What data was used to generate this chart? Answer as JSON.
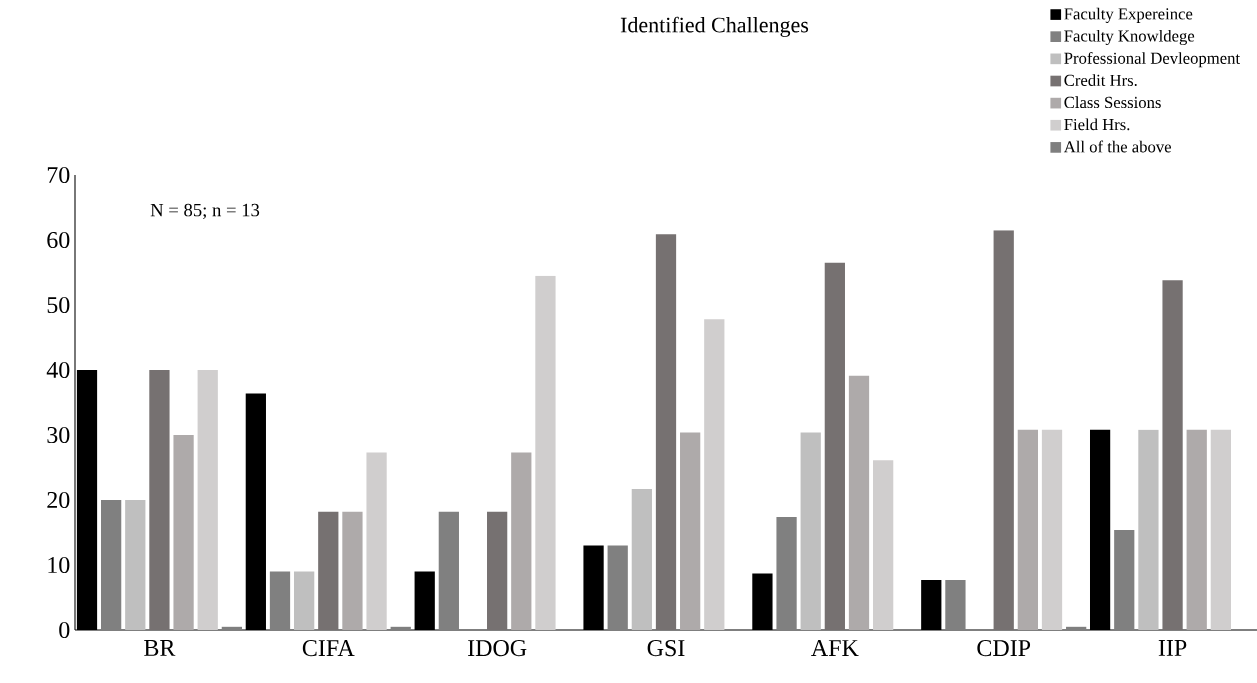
{
  "chart_data": {
    "type": "bar",
    "title": "Identified Challenges",
    "categories": [
      "BR",
      "CIFA",
      "IDOG",
      "GSI",
      "AFK",
      "CDIP",
      "IIP"
    ],
    "series": [
      {
        "name": "Faculty Expereince",
        "color": "#000000",
        "values": [
          40,
          36.4,
          9,
          13,
          8.7,
          7.7,
          30.8
        ]
      },
      {
        "name": "Faculty Knowldege",
        "color": "#808080",
        "values": [
          20,
          9,
          18.2,
          13,
          17.4,
          7.7,
          15.4
        ]
      },
      {
        "name": "Professional Devleopment",
        "color": "#bfbfbf",
        "values": [
          20,
          9,
          0,
          21.7,
          30.4,
          0,
          30.8
        ]
      },
      {
        "name": "Credit Hrs.",
        "color": "#767171",
        "values": [
          40,
          18.2,
          18.2,
          60.9,
          56.5,
          61.5,
          53.8
        ]
      },
      {
        "name": "Class Sessions",
        "color": "#aeaaaa",
        "values": [
          30,
          18.2,
          27.3,
          30.4,
          39.1,
          30.8,
          30.8
        ]
      },
      {
        "name": "Field Hrs.",
        "color": "#d0cece",
        "values": [
          40,
          27.3,
          54.5,
          47.8,
          26.1,
          30.8,
          30.8
        ]
      },
      {
        "name": "All of the above",
        "color": "#7f7f7f",
        "values": [
          0.5,
          0.5,
          0,
          0,
          0,
          0.5,
          0
        ]
      }
    ],
    "annotations": [
      "N = 85; n = 13"
    ],
    "ylim": [
      0,
      70
    ],
    "yticks": [
      0,
      10,
      20,
      30,
      40,
      50,
      60,
      70
    ],
    "legend": "top right"
  }
}
